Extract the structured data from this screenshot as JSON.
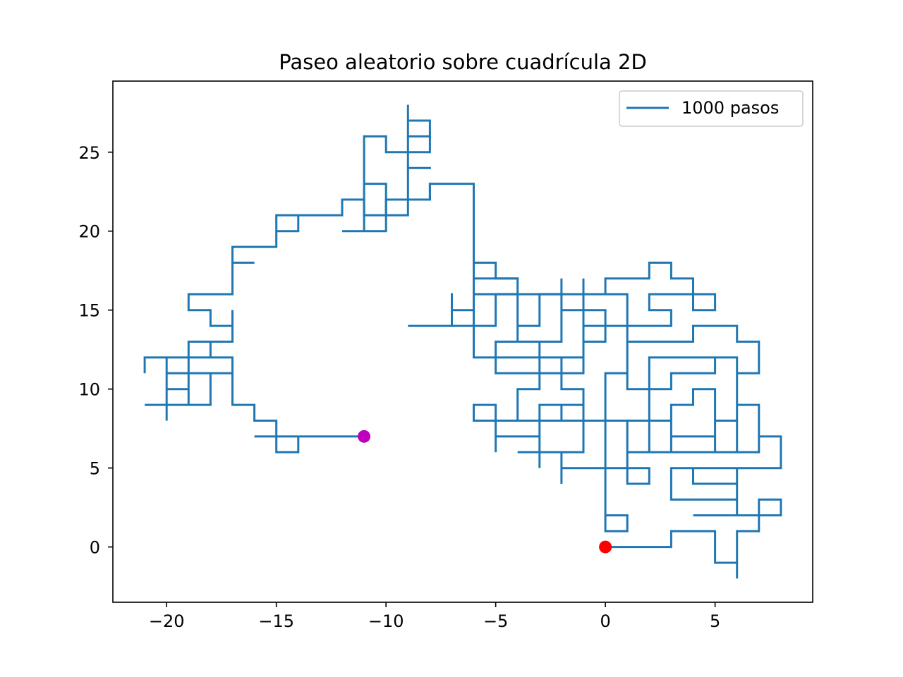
{
  "chart_data": {
    "type": "line",
    "title": "Paseo aleatorio sobre cuadrícula 2D",
    "xlabel": "",
    "ylabel": "",
    "xlim": [
      -22.45,
      9.45
    ],
    "ylim": [
      -3.5,
      29.5
    ],
    "xticks": [
      -20,
      -15,
      -10,
      -5,
      0,
      5
    ],
    "yticks": [
      0,
      5,
      10,
      15,
      20,
      25
    ],
    "xtick_labels": [
      "−20",
      "−15",
      "−10",
      "−5",
      "0",
      "5"
    ],
    "ytick_labels": [
      "0",
      "5",
      "10",
      "15",
      "20",
      "25"
    ],
    "grid": false,
    "legend": {
      "placement": "top-right",
      "entries": [
        "1000 pasos"
      ]
    },
    "colors": {
      "path": "#1f77b4",
      "start": "#ff0000",
      "end": "#bf00bf"
    },
    "series": [
      {
        "name": "1000 pasos",
        "points": [
          [
            0,
            0
          ],
          [
            3,
            0
          ],
          [
            3,
            1
          ],
          [
            5,
            1
          ],
          [
            5,
            -1
          ],
          [
            6,
            -1
          ],
          [
            6,
            -2
          ],
          [
            6,
            1
          ],
          [
            7,
            1
          ],
          [
            7,
            3
          ],
          [
            8,
            3
          ],
          [
            8,
            2
          ],
          [
            4,
            2
          ],
          [
            6,
            2
          ],
          [
            6,
            4
          ],
          [
            4,
            4
          ],
          [
            4,
            5
          ],
          [
            6,
            5
          ],
          [
            6,
            3
          ],
          [
            3,
            3
          ],
          [
            3,
            5
          ],
          [
            8,
            5
          ],
          [
            8,
            7
          ],
          [
            7,
            7
          ],
          [
            7,
            6
          ],
          [
            1,
            6
          ],
          [
            1,
            4
          ],
          [
            2,
            4
          ],
          [
            2,
            5
          ],
          [
            0,
            5
          ],
          [
            0,
            8
          ],
          [
            0,
            2
          ],
          [
            1,
            2
          ],
          [
            1,
            1
          ],
          [
            0,
            1
          ],
          [
            0,
            5
          ],
          [
            -2,
            5
          ],
          [
            -2,
            4
          ],
          [
            -2,
            6
          ],
          [
            -4,
            6
          ],
          [
            -1,
            6
          ],
          [
            -1,
            9
          ],
          [
            -3,
            9
          ],
          [
            -3,
            5
          ],
          [
            -3,
            7
          ],
          [
            -5,
            7
          ],
          [
            -5,
            6
          ],
          [
            -5,
            9
          ],
          [
            -6,
            9
          ],
          [
            -6,
            8
          ],
          [
            1,
            8
          ],
          [
            1,
            6
          ],
          [
            2,
            6
          ],
          [
            2,
            8
          ],
          [
            3,
            8
          ],
          [
            3,
            6
          ],
          [
            5,
            6
          ],
          [
            5,
            10
          ],
          [
            4,
            10
          ],
          [
            4,
            9
          ],
          [
            3,
            9
          ],
          [
            3,
            7
          ],
          [
            5,
            7
          ],
          [
            5,
            8
          ],
          [
            6,
            8
          ],
          [
            6,
            9
          ],
          [
            7,
            9
          ],
          [
            7,
            6
          ],
          [
            6,
            6
          ],
          [
            6,
            12
          ],
          [
            5,
            12
          ],
          [
            5,
            11
          ],
          [
            3,
            11
          ],
          [
            3,
            10
          ],
          [
            2,
            10
          ],
          [
            2,
            8
          ],
          [
            0,
            8
          ],
          [
            0,
            11
          ],
          [
            1,
            11
          ],
          [
            1,
            13
          ],
          [
            4,
            13
          ],
          [
            4,
            14
          ],
          [
            6,
            14
          ],
          [
            6,
            13
          ],
          [
            7,
            13
          ],
          [
            7,
            11
          ],
          [
            6,
            11
          ],
          [
            6,
            12
          ],
          [
            2,
            12
          ],
          [
            2,
            10
          ],
          [
            1,
            10
          ],
          [
            1,
            14
          ],
          [
            -1,
            14
          ],
          [
            -1,
            12
          ],
          [
            -3,
            12
          ],
          [
            -3,
            10
          ],
          [
            -4,
            10
          ],
          [
            -4,
            8
          ],
          [
            -2,
            8
          ],
          [
            -2,
            9
          ],
          [
            -1,
            9
          ],
          [
            -1,
            10
          ],
          [
            -2,
            10
          ],
          [
            -2,
            12
          ],
          [
            -1,
            12
          ],
          [
            -1,
            13
          ],
          [
            0,
            13
          ],
          [
            0,
            15
          ],
          [
            -2,
            15
          ],
          [
            -2,
            17
          ],
          [
            -2,
            13
          ],
          [
            -4,
            13
          ],
          [
            -4,
            17
          ],
          [
            -5,
            17
          ],
          [
            -5,
            18
          ],
          [
            -6,
            18
          ],
          [
            -6,
            12
          ],
          [
            -3,
            12
          ],
          [
            -3,
            13
          ],
          [
            -5,
            13
          ],
          [
            -5,
            11
          ],
          [
            -1,
            11
          ],
          [
            -1,
            17
          ],
          [
            -1,
            16
          ],
          [
            0,
            16
          ],
          [
            0,
            17
          ],
          [
            2,
            17
          ],
          [
            2,
            18
          ],
          [
            3,
            18
          ],
          [
            3,
            17
          ],
          [
            4,
            17
          ],
          [
            4,
            15
          ],
          [
            5,
            15
          ],
          [
            5,
            16
          ],
          [
            2,
            16
          ],
          [
            2,
            15
          ],
          [
            3,
            15
          ],
          [
            3,
            14
          ],
          [
            1,
            14
          ],
          [
            1,
            16
          ],
          [
            -3,
            16
          ],
          [
            -3,
            14
          ],
          [
            -4,
            14
          ],
          [
            -4,
            16
          ],
          [
            -5,
            16
          ],
          [
            -5,
            14
          ],
          [
            -7,
            14
          ],
          [
            -7,
            15
          ],
          [
            -6,
            15
          ],
          [
            -6,
            23
          ],
          [
            -8,
            23
          ],
          [
            -8,
            22
          ],
          [
            -10,
            22
          ],
          [
            -10,
            20
          ],
          [
            -12,
            20
          ],
          [
            -11,
            20
          ],
          [
            -11,
            22
          ],
          [
            -12,
            22
          ],
          [
            -12,
            21
          ],
          [
            -15,
            21
          ],
          [
            -15,
            20
          ],
          [
            -14,
            20
          ],
          [
            -14,
            21
          ],
          [
            -15,
            21
          ],
          [
            -15,
            19
          ],
          [
            -17,
            19
          ],
          [
            -17,
            18
          ],
          [
            -16,
            18
          ],
          [
            -17,
            18
          ],
          [
            -17,
            16
          ],
          [
            -19,
            16
          ],
          [
            -19,
            15
          ],
          [
            -18,
            15
          ],
          [
            -18,
            14
          ],
          [
            -17,
            14
          ],
          [
            -17,
            15
          ],
          [
            -17,
            13
          ],
          [
            -19,
            13
          ],
          [
            -19,
            12
          ],
          [
            -18,
            12
          ],
          [
            -18,
            13
          ],
          [
            -19,
            13
          ],
          [
            -19,
            9
          ],
          [
            -20,
            9
          ],
          [
            -20,
            10
          ],
          [
            -19,
            10
          ],
          [
            -20,
            10
          ],
          [
            -20,
            12
          ],
          [
            -21,
            12
          ],
          [
            -21,
            11
          ],
          [
            -21,
            12
          ],
          [
            -17,
            12
          ],
          [
            -17,
            11
          ],
          [
            -20,
            11
          ],
          [
            -20,
            8
          ],
          [
            -20,
            9
          ],
          [
            -21,
            9
          ],
          [
            -18,
            9
          ],
          [
            -18,
            11
          ],
          [
            -18,
            10
          ],
          [
            -18,
            11
          ],
          [
            -17,
            11
          ],
          [
            -17,
            9
          ],
          [
            -16,
            9
          ],
          [
            -16,
            8
          ],
          [
            -15,
            8
          ],
          [
            -15,
            6
          ],
          [
            -14,
            6
          ],
          [
            -14,
            7
          ],
          [
            -16,
            7
          ],
          [
            -11,
            7
          ]
        ],
        "overlay_segments": [
          [
            [
              -11,
              22
            ],
            [
              -11,
              26
            ],
            [
              -10,
              26
            ],
            [
              -10,
              25
            ],
            [
              -8,
              25
            ],
            [
              -8,
              27
            ],
            [
              -9,
              27
            ],
            [
              -9,
              28
            ],
            [
              -9,
              21
            ],
            [
              -10,
              21
            ],
            [
              -10,
              23
            ],
            [
              -11,
              23
            ],
            [
              -11,
              21
            ],
            [
              -9,
              21
            ]
          ],
          [
            [
              -9,
              26
            ],
            [
              -8,
              26
            ]
          ],
          [
            [
              -9,
              24
            ],
            [
              -8,
              24
            ]
          ],
          [
            [
              -8,
              22
            ],
            [
              -8,
              23
            ]
          ],
          [
            [
              -2,
              16
            ],
            [
              -6,
              16
            ]
          ],
          [
            [
              -6,
              17
            ],
            [
              -4,
              17
            ]
          ],
          [
            [
              -7,
              16
            ],
            [
              -7,
              14
            ],
            [
              -9,
              14
            ],
            [
              -7,
              14
            ]
          ]
        ],
        "start": [
          0,
          0
        ],
        "end": [
          -11,
          7
        ]
      }
    ]
  }
}
